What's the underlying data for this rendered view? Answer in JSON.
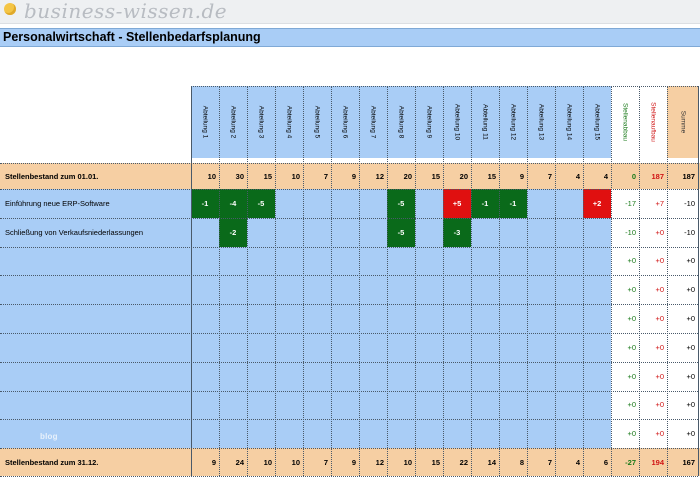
{
  "logo": {
    "text": "business-wissen.de"
  },
  "title": "Personalwirtschaft - Stellenbedarfsplanung",
  "watermark": "blog",
  "headers": [
    "Abteilung 1",
    "Abteilung 2",
    "Abteilung 3",
    "Abteilung 4",
    "Abteilung 5",
    "Abteilung 6",
    "Abteilung 7",
    "Abteilung 8",
    "Abteilung 9",
    "Abteilung 10",
    "Abteilung 11",
    "Abteilung 12",
    "Abteilung 13",
    "Abteilung 14",
    "Abteilung 15"
  ],
  "summary_headers": {
    "abbau": "Stellenabbau",
    "aufbau": "Stellenaufbau",
    "summe": "Summe"
  },
  "colors": {
    "green": "#0a6a1a",
    "red": "#e01010",
    "blue_fill": "#a9cdf6",
    "orange_fill": "#f6cfa3"
  },
  "start_row": {
    "label": "Stellenbestand zum 01.01.",
    "values": [
      "10",
      "30",
      "15",
      "10",
      "7",
      "9",
      "12",
      "20",
      "15",
      "20",
      "15",
      "9",
      "7",
      "4",
      "4"
    ],
    "abbau": "0",
    "aufbau": "187",
    "summe": "187"
  },
  "rows": [
    {
      "label": "Einführung neue ERP-Software",
      "values": [
        "-1",
        "-4",
        "-5",
        "",
        "",
        "",
        "",
        "-5",
        "",
        "+5",
        "-1",
        "-1",
        "",
        "",
        "+2"
      ],
      "abbau": "-17",
      "aufbau": "+7",
      "summe": "-10"
    },
    {
      "label": "Schließung von Verkaufsniederlassungen",
      "values": [
        "",
        "-2",
        "",
        "",
        "",
        "",
        "",
        "-5",
        "",
        "-3",
        "",
        "",
        "",
        "",
        ""
      ],
      "abbau": "-10",
      "aufbau": "+0",
      "summe": "-10"
    },
    {
      "label": "",
      "values": [
        "",
        "",
        "",
        "",
        "",
        "",
        "",
        "",
        "",
        "",
        "",
        "",
        "",
        "",
        ""
      ],
      "abbau": "+0",
      "aufbau": "+0",
      "summe": "+0"
    },
    {
      "label": "",
      "values": [
        "",
        "",
        "",
        "",
        "",
        "",
        "",
        "",
        "",
        "",
        "",
        "",
        "",
        "",
        ""
      ],
      "abbau": "+0",
      "aufbau": "+0",
      "summe": "+0"
    },
    {
      "label": "",
      "values": [
        "",
        "",
        "",
        "",
        "",
        "",
        "",
        "",
        "",
        "",
        "",
        "",
        "",
        "",
        ""
      ],
      "abbau": "+0",
      "aufbau": "+0",
      "summe": "+0"
    },
    {
      "label": "",
      "values": [
        "",
        "",
        "",
        "",
        "",
        "",
        "",
        "",
        "",
        "",
        "",
        "",
        "",
        "",
        ""
      ],
      "abbau": "+0",
      "aufbau": "+0",
      "summe": "+0"
    },
    {
      "label": "",
      "values": [
        "",
        "",
        "",
        "",
        "",
        "",
        "",
        "",
        "",
        "",
        "",
        "",
        "",
        "",
        ""
      ],
      "abbau": "+0",
      "aufbau": "+0",
      "summe": "+0"
    },
    {
      "label": "",
      "values": [
        "",
        "",
        "",
        "",
        "",
        "",
        "",
        "",
        "",
        "",
        "",
        "",
        "",
        "",
        ""
      ],
      "abbau": "+0",
      "aufbau": "+0",
      "summe": "+0"
    },
    {
      "label": "",
      "values": [
        "",
        "",
        "",
        "",
        "",
        "",
        "",
        "",
        "",
        "",
        "",
        "",
        "",
        "",
        ""
      ],
      "abbau": "+0",
      "aufbau": "+0",
      "summe": "+0"
    }
  ],
  "end_row": {
    "label": "Stellenbestand zum 31.12.",
    "values": [
      "9",
      "24",
      "10",
      "10",
      "7",
      "9",
      "12",
      "10",
      "15",
      "22",
      "14",
      "8",
      "7",
      "4",
      "6"
    ],
    "abbau": "-27",
    "aufbau": "194",
    "summe": "167"
  }
}
